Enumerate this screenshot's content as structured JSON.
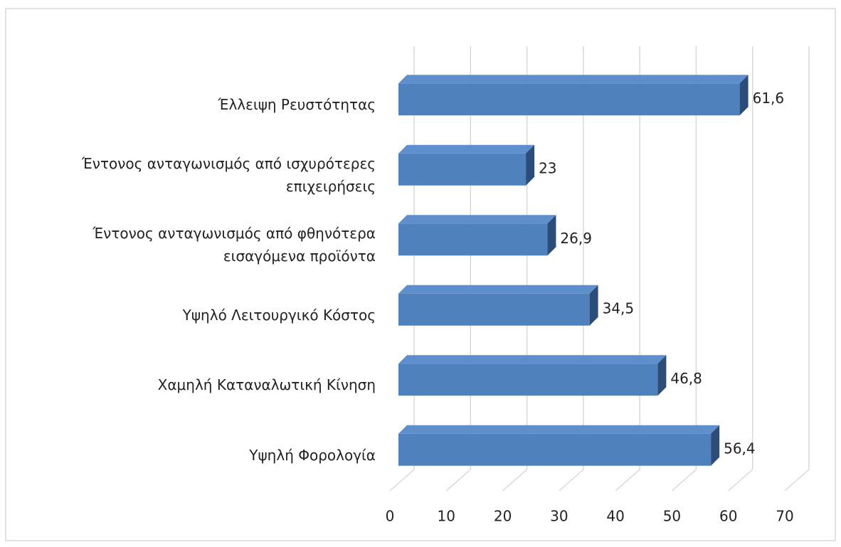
{
  "chart_data": {
    "type": "bar3d_horizontal",
    "categories": [
      "Έλλειψη Ρευστότητας",
      "Έντονος ανταγωνισμός από ισχυρότερες\nεπιχειρήσεις",
      "Έντονος ανταγωνισμός από φθηνότερα\nεισαγόμενα προϊόντα",
      "Υψηλό Λειτουργικό Κόστος",
      "Χαμηλή Καταναλωτική Κίνηση",
      "Υψηλή Φορολογία"
    ],
    "values": [
      61.6,
      23,
      26.9,
      34.5,
      46.8,
      56.4
    ],
    "value_labels": [
      "61,6",
      "23",
      "26,9",
      "34,5",
      "46,8",
      "56,4"
    ],
    "color": "#4f81bd",
    "xlim": [
      0,
      70
    ],
    "xticks": [
      0,
      10,
      20,
      30,
      40,
      50,
      60,
      70
    ],
    "grid": true
  }
}
